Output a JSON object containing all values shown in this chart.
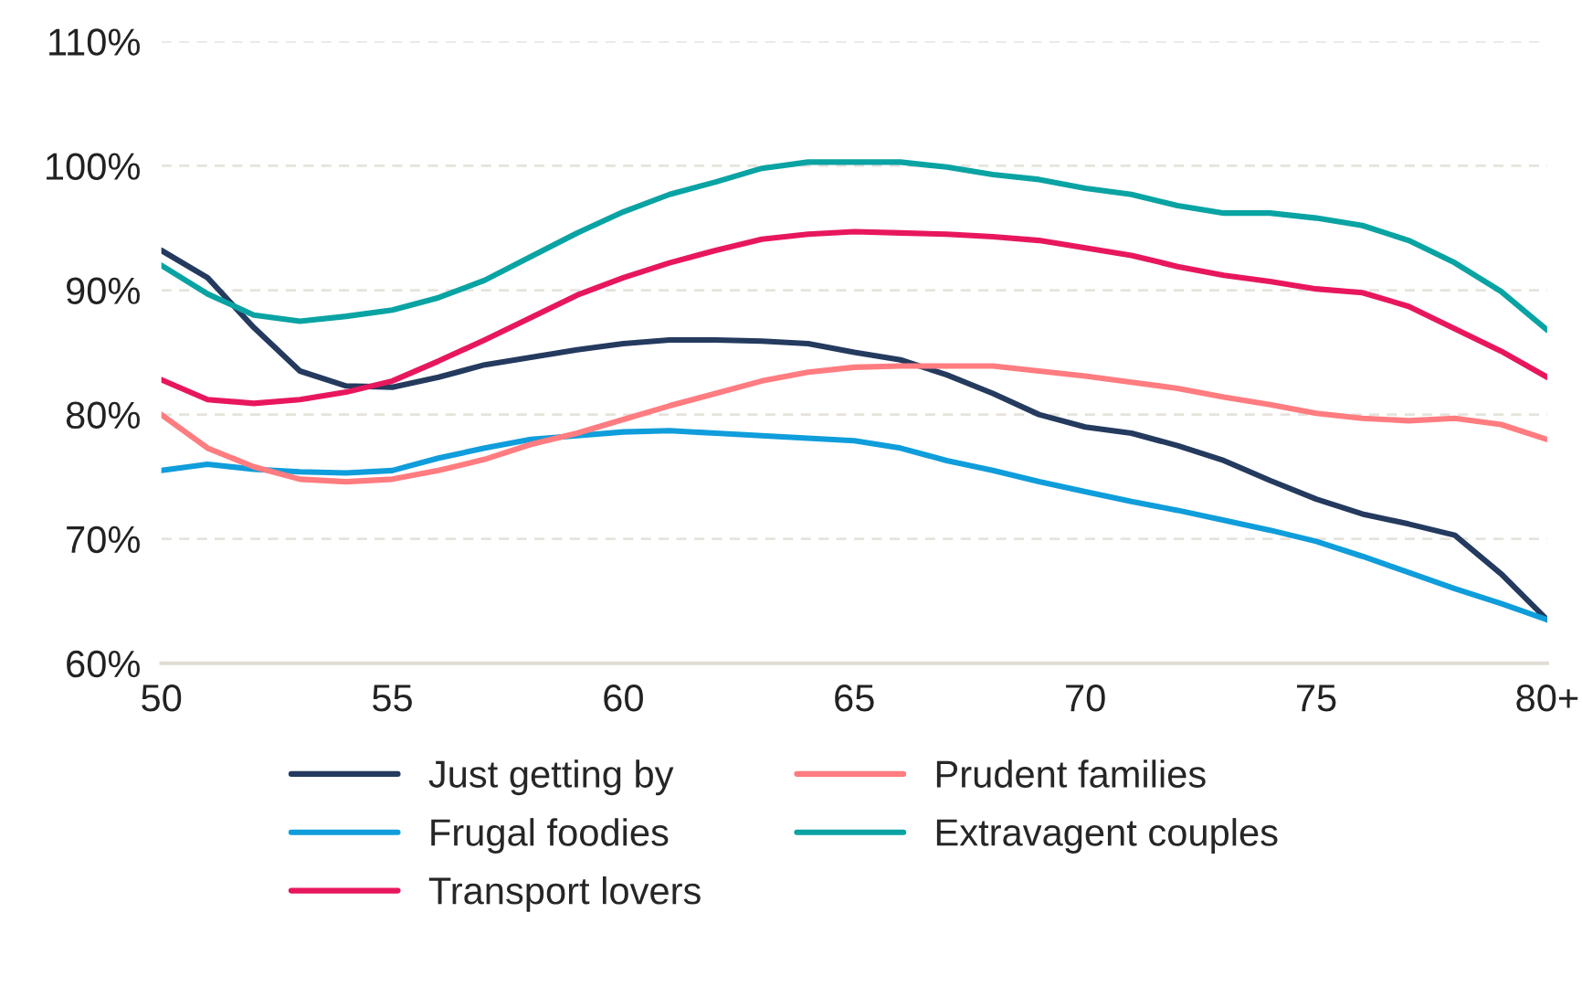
{
  "chart_data": {
    "type": "line",
    "x": [
      50,
      51,
      52,
      53,
      54,
      55,
      56,
      57,
      58,
      59,
      60,
      61,
      62,
      63,
      64,
      65,
      66,
      67,
      68,
      69,
      70,
      71,
      72,
      73,
      74,
      75,
      76,
      77,
      78,
      79,
      80
    ],
    "xlim": [
      50,
      80
    ],
    "xticks": [
      50,
      55,
      60,
      65,
      70,
      75,
      {
        "value": 80,
        "label": "80+"
      }
    ],
    "ylim": [
      60,
      110
    ],
    "yticks": [
      {
        "value": 60,
        "label": "60%"
      },
      {
        "value": 70,
        "label": "70%"
      },
      {
        "value": 80,
        "label": "80%"
      },
      {
        "value": 90,
        "label": "90%"
      },
      {
        "value": 100,
        "label": "100%"
      },
      {
        "value": 110,
        "label": "110%"
      }
    ],
    "grid": "y",
    "legend": "bottom",
    "marker": "none",
    "line_style": "solid",
    "series": [
      {
        "name": "Just getting by",
        "color": "#243a5e",
        "values": [
          93.2,
          91,
          87,
          83.5,
          82.3,
          82.2,
          83,
          84,
          84.6,
          85.2,
          85.7,
          86,
          86,
          85.9,
          85.7,
          85,
          84.4,
          83.2,
          81.7,
          80,
          79,
          78.5,
          77.5,
          76.3,
          74.7,
          73.2,
          72,
          71.2,
          70.3,
          67.2,
          63.5
        ]
      },
      {
        "name": "Frugal foodies",
        "color": "#0f9ddb",
        "values": [
          75.5,
          76,
          75.6,
          75.4,
          75.3,
          75.5,
          76.5,
          77.3,
          78,
          78.3,
          78.6,
          78.7,
          78.5,
          78.3,
          78.1,
          77.9,
          77.3,
          76.3,
          75.5,
          74.6,
          73.8,
          73,
          72.3,
          71.5,
          70.7,
          69.8,
          68.6,
          67.3,
          66,
          64.8,
          63.5
        ]
      },
      {
        "name": "Transport lovers",
        "color": "#e8175d",
        "values": [
          82.8,
          81.2,
          80.9,
          81.2,
          81.8,
          82.7,
          84.3,
          86,
          87.8,
          89.6,
          91,
          92.2,
          93.2,
          94.1,
          94.5,
          94.7,
          94.6,
          94.5,
          94.3,
          94,
          93.4,
          92.8,
          91.9,
          91.2,
          90.7,
          90.1,
          89.8,
          88.7,
          86.9,
          85.1,
          83
        ]
      },
      {
        "name": "Prudent families",
        "color": "#ff7c80",
        "values": [
          80,
          77.3,
          75.8,
          74.8,
          74.6,
          74.8,
          75.5,
          76.4,
          77.6,
          78.5,
          79.6,
          80.7,
          81.7,
          82.7,
          83.4,
          83.8,
          83.9,
          83.9,
          83.9,
          83.5,
          83.1,
          82.6,
          82.1,
          81.4,
          80.8,
          80.1,
          79.7,
          79.5,
          79.7,
          79.2,
          78
        ]
      },
      {
        "name": "Extravagent couples",
        "color": "#0aa3a3",
        "values": [
          92,
          89.7,
          88,
          87.5,
          87.9,
          88.4,
          89.4,
          90.8,
          92.7,
          94.6,
          96.3,
          97.7,
          98.7,
          99.8,
          100.3,
          100.3,
          100.3,
          99.9,
          99.3,
          98.9,
          98.2,
          97.7,
          96.8,
          96.2,
          96.2,
          95.8,
          95.2,
          94,
          92.2,
          89.9,
          86.8
        ]
      }
    ]
  }
}
